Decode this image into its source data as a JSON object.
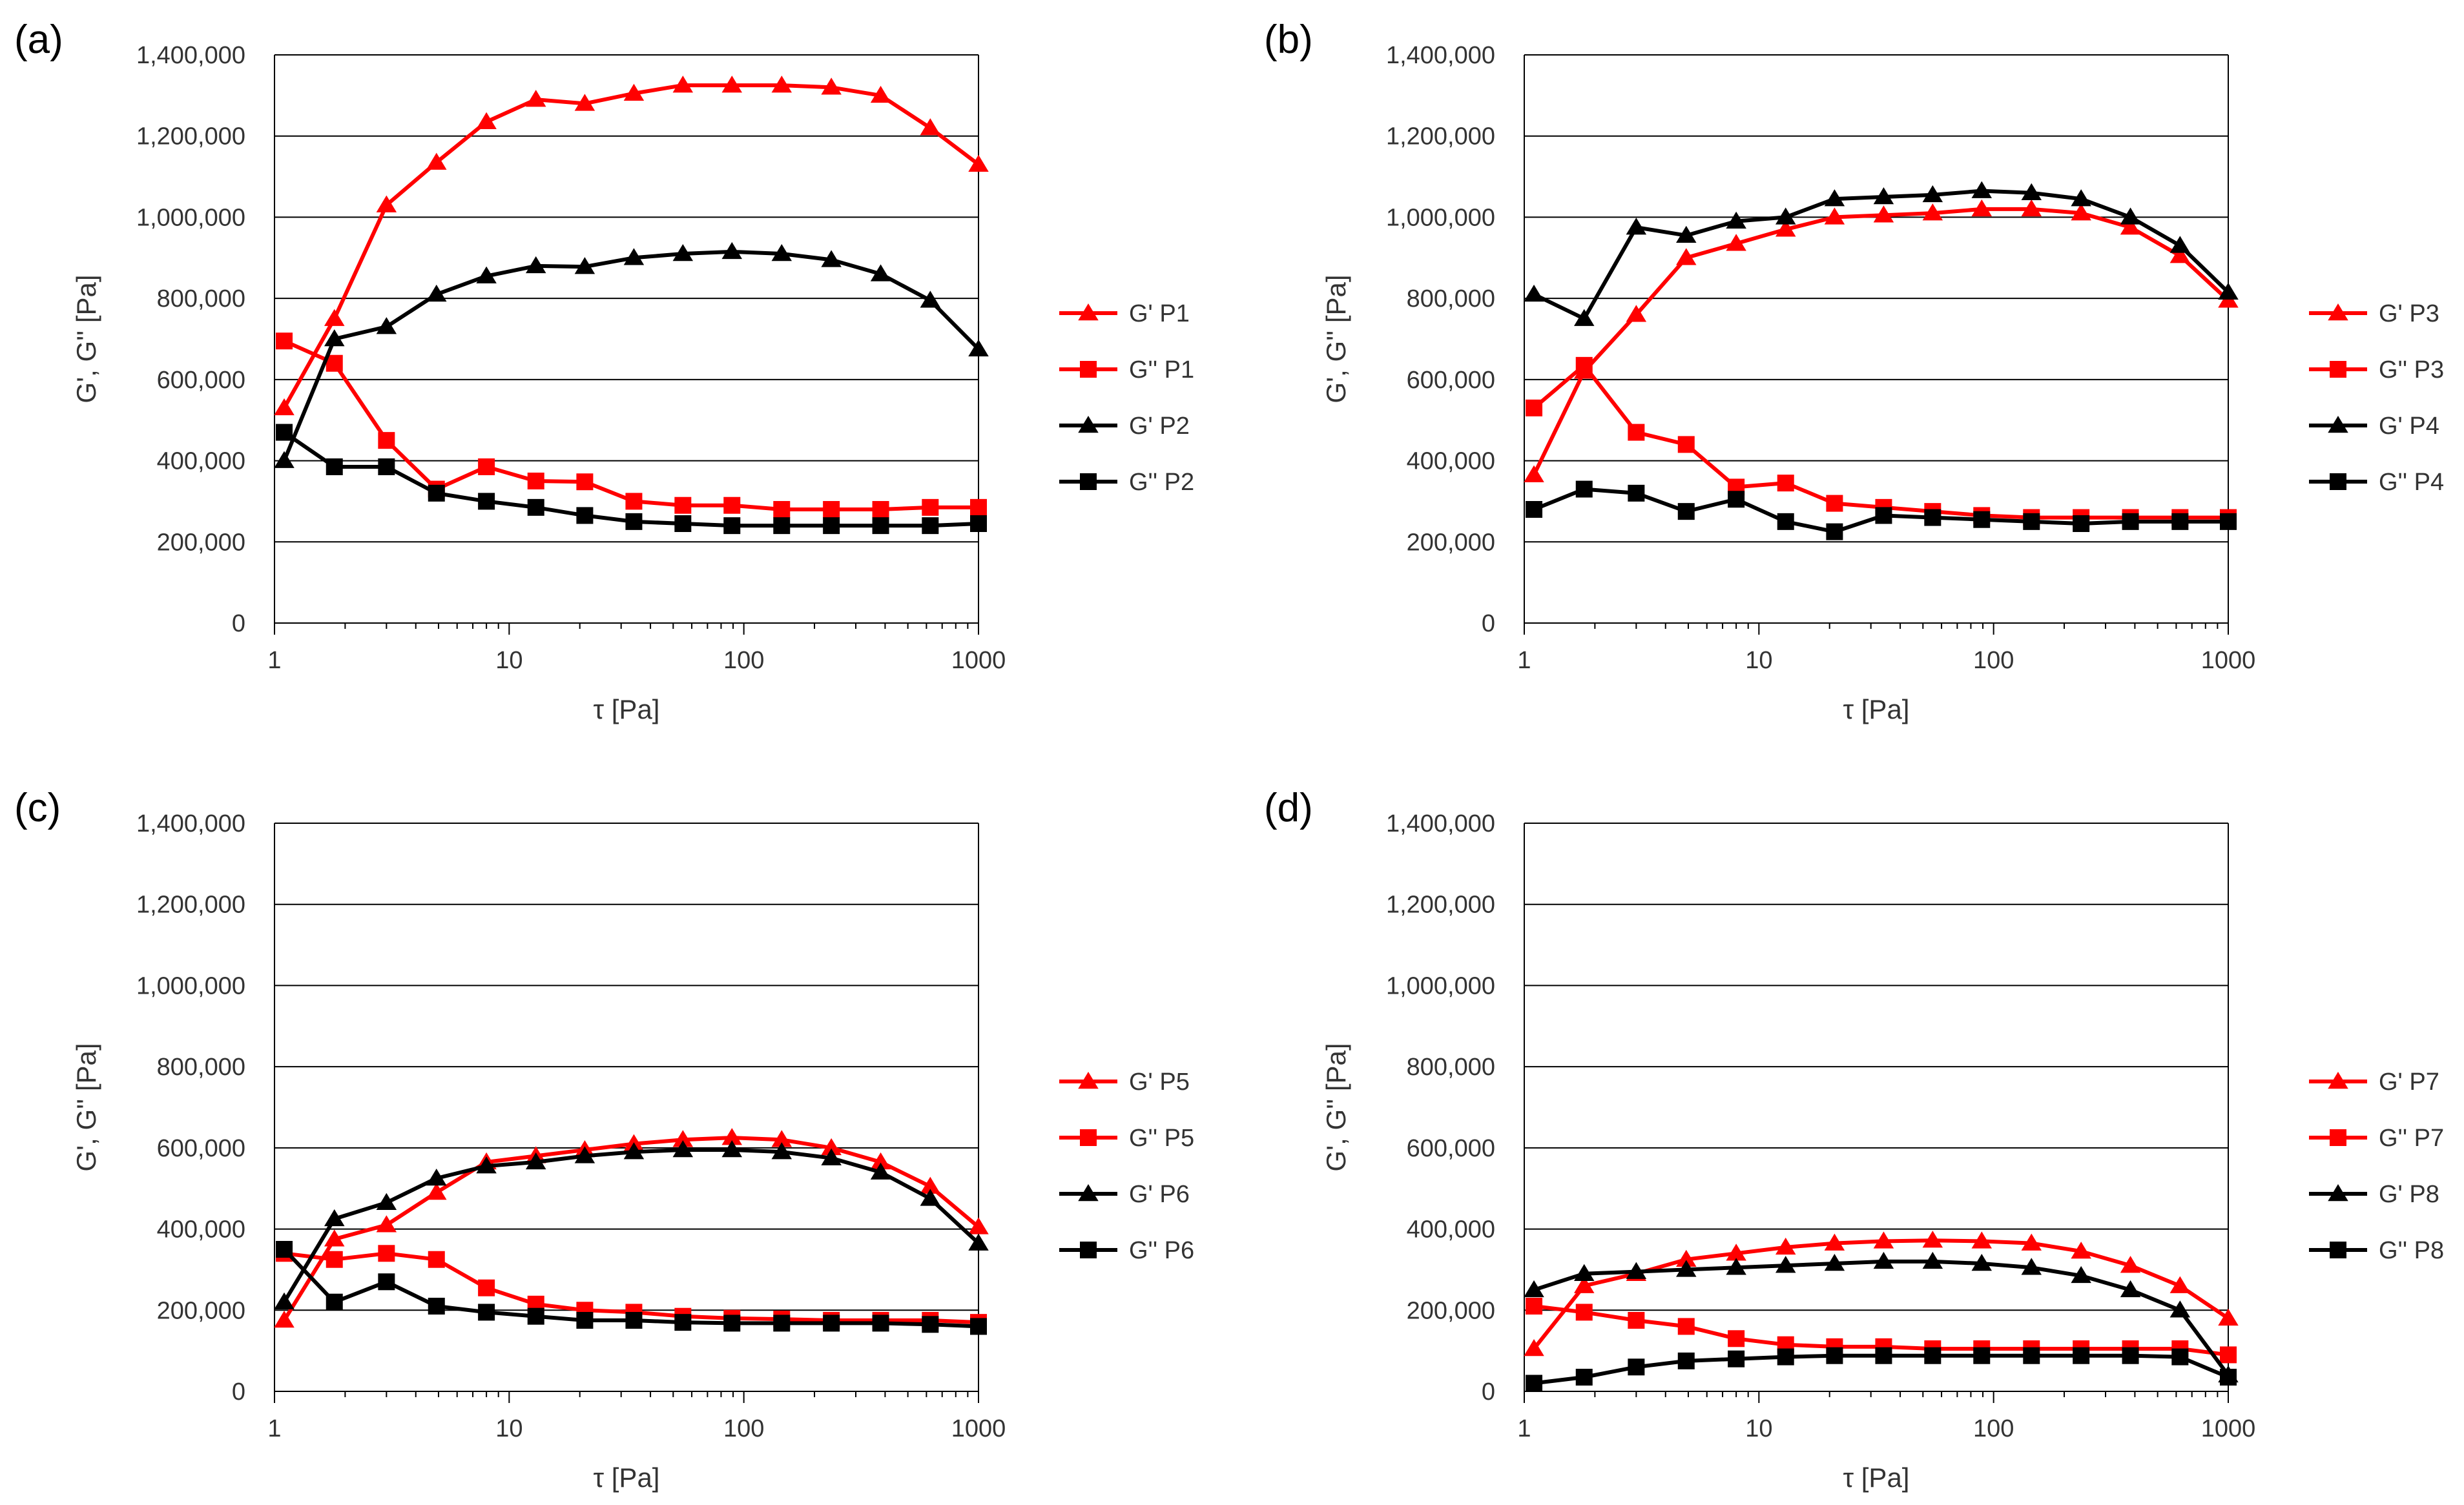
{
  "figure": {
    "yticks": [
      "0",
      "200,000",
      "400,000",
      "600,000",
      "800,000",
      "1,000,000",
      "1,200,000",
      "1,400,000"
    ],
    "xticks": [
      "1",
      "10",
      "100",
      "1000"
    ]
  },
  "colors": {
    "red": "#ff0000",
    "black": "#000000"
  },
  "chart_data": [
    {
      "type": "line",
      "panel_label": "(a)",
      "xlabel": "τ [Pa]",
      "ylabel": "G', G'' [Pa]",
      "xscale": "log",
      "xlim": [
        1,
        1000
      ],
      "ylim": [
        0,
        1400000
      ],
      "grid": true,
      "legend_position": "right",
      "x": [
        1.1,
        1.8,
        3,
        4.9,
        8,
        13,
        21,
        34,
        55,
        89,
        145,
        236,
        383,
        623,
        1000
      ],
      "series": [
        {
          "name": "G' P1",
          "color": "red",
          "marker": "triangle",
          "values": [
            530000,
            750000,
            1030000,
            1135000,
            1235000,
            1290000,
            1280000,
            1305000,
            1325000,
            1325000,
            1325000,
            1320000,
            1300000,
            1220000,
            1130000
          ]
        },
        {
          "name": "G'' P1",
          "color": "red",
          "marker": "square",
          "values": [
            695000,
            640000,
            450000,
            330000,
            385000,
            350000,
            348000,
            300000,
            290000,
            290000,
            280000,
            280000,
            280000,
            285000,
            285000
          ]
        },
        {
          "name": "G' P2",
          "color": "black",
          "marker": "triangle",
          "values": [
            400000,
            700000,
            730000,
            810000,
            855000,
            880000,
            878000,
            900000,
            910000,
            915000,
            910000,
            895000,
            860000,
            795000,
            675000
          ]
        },
        {
          "name": "G'' P2",
          "color": "black",
          "marker": "square",
          "values": [
            470000,
            385000,
            385000,
            320000,
            300000,
            285000,
            265000,
            250000,
            245000,
            240000,
            240000,
            240000,
            240000,
            240000,
            245000
          ]
        }
      ]
    },
    {
      "type": "line",
      "panel_label": "(b)",
      "xlabel": "τ [Pa]",
      "ylabel": "G', G'' [Pa]",
      "xscale": "log",
      "xlim": [
        1,
        1000
      ],
      "ylim": [
        0,
        1400000
      ],
      "grid": true,
      "legend_position": "right",
      "x": [
        1.1,
        1.8,
        3,
        4.9,
        8,
        13,
        21,
        34,
        55,
        89,
        145,
        236,
        383,
        623,
        1000
      ],
      "series": [
        {
          "name": "G' P3",
          "color": "red",
          "marker": "triangle",
          "values": [
            365000,
            620000,
            760000,
            900000,
            935000,
            970000,
            1000000,
            1005000,
            1010000,
            1020000,
            1020000,
            1010000,
            975000,
            905000,
            795000
          ]
        },
        {
          "name": "G'' P3",
          "color": "red",
          "marker": "square",
          "values": [
            530000,
            635000,
            470000,
            440000,
            335000,
            345000,
            295000,
            285000,
            275000,
            265000,
            260000,
            260000,
            260000,
            260000,
            260000
          ]
        },
        {
          "name": "G' P4",
          "color": "black",
          "marker": "triangle",
          "values": [
            810000,
            750000,
            975000,
            955000,
            990000,
            1000000,
            1045000,
            1050000,
            1055000,
            1065000,
            1060000,
            1045000,
            1000000,
            930000,
            815000
          ]
        },
        {
          "name": "G'' P4",
          "color": "black",
          "marker": "square",
          "values": [
            280000,
            330000,
            320000,
            275000,
            305000,
            250000,
            225000,
            265000,
            260000,
            255000,
            250000,
            245000,
            250000,
            250000,
            250000
          ]
        }
      ]
    },
    {
      "type": "line",
      "panel_label": "(c)",
      "xlabel": "τ [Pa]",
      "ylabel": "G', G'' [Pa]",
      "xscale": "log",
      "xlim": [
        1,
        1000
      ],
      "ylim": [
        0,
        1400000
      ],
      "grid": true,
      "legend_position": "right",
      "x": [
        1.1,
        1.8,
        3,
        4.9,
        8,
        13,
        21,
        34,
        55,
        89,
        145,
        236,
        383,
        623,
        1000
      ],
      "series": [
        {
          "name": "G' P5",
          "color": "red",
          "marker": "triangle",
          "values": [
            175000,
            375000,
            410000,
            490000,
            565000,
            580000,
            595000,
            610000,
            620000,
            625000,
            620000,
            600000,
            565000,
            505000,
            405000
          ]
        },
        {
          "name": "G'' P5",
          "color": "red",
          "marker": "square",
          "values": [
            340000,
            325000,
            340000,
            325000,
            255000,
            215000,
            200000,
            195000,
            185000,
            180000,
            178000,
            175000,
            175000,
            175000,
            170000
          ]
        },
        {
          "name": "G' P6",
          "color": "black",
          "marker": "triangle",
          "values": [
            220000,
            425000,
            465000,
            525000,
            555000,
            565000,
            580000,
            590000,
            595000,
            595000,
            590000,
            575000,
            540000,
            475000,
            365000
          ]
        },
        {
          "name": "G'' P6",
          "color": "black",
          "marker": "square",
          "values": [
            350000,
            220000,
            270000,
            210000,
            195000,
            185000,
            175000,
            175000,
            170000,
            168000,
            168000,
            168000,
            168000,
            165000,
            160000
          ]
        }
      ]
    },
    {
      "type": "line",
      "panel_label": "(d)",
      "xlabel": "τ [Pa]",
      "ylabel": "G', G'' [Pa]",
      "xscale": "log",
      "xlim": [
        1,
        1000
      ],
      "ylim": [
        0,
        1400000
      ],
      "grid": true,
      "legend_position": "right",
      "x": [
        1.1,
        1.8,
        3,
        4.9,
        8,
        13,
        21,
        34,
        55,
        89,
        145,
        236,
        383,
        623,
        1000
      ],
      "series": [
        {
          "name": "G' P7",
          "color": "red",
          "marker": "triangle",
          "values": [
            105000,
            260000,
            290000,
            325000,
            340000,
            355000,
            365000,
            370000,
            372000,
            370000,
            365000,
            345000,
            310000,
            260000,
            180000
          ]
        },
        {
          "name": "G'' P7",
          "color": "red",
          "marker": "square",
          "values": [
            210000,
            195000,
            175000,
            160000,
            130000,
            115000,
            110000,
            110000,
            105000,
            105000,
            105000,
            105000,
            105000,
            105000,
            90000
          ]
        },
        {
          "name": "G' P8",
          "color": "black",
          "marker": "triangle",
          "values": [
            250000,
            290000,
            295000,
            300000,
            305000,
            310000,
            315000,
            320000,
            320000,
            315000,
            305000,
            285000,
            250000,
            200000,
            40000
          ]
        },
        {
          "name": "G'' P8",
          "color": "black",
          "marker": "square",
          "values": [
            20000,
            35000,
            60000,
            75000,
            80000,
            85000,
            88000,
            88000,
            88000,
            88000,
            88000,
            88000,
            88000,
            85000,
            35000
          ]
        }
      ]
    }
  ]
}
